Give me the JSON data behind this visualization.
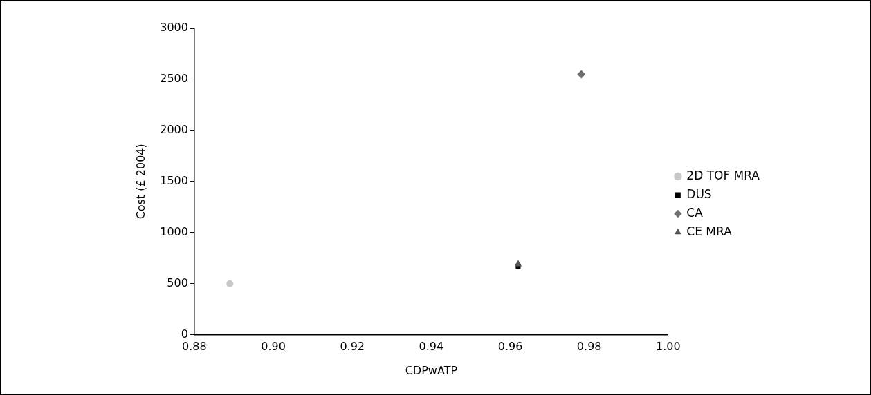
{
  "chart_data": {
    "type": "scatter",
    "xlabel": "CDPwATP",
    "ylabel": "Cost (£ 2004)",
    "xlim": [
      0.88,
      1.0
    ],
    "xticks": [
      {
        "value": 0.88,
        "label": "0.88"
      },
      {
        "value": 0.9,
        "label": "0.90"
      },
      {
        "value": 0.92,
        "label": "0.92"
      },
      {
        "value": 0.94,
        "label": "0.94"
      },
      {
        "value": 0.96,
        "label": "0.96"
      },
      {
        "value": 0.98,
        "label": "0.98"
      },
      {
        "value": 1.0,
        "label": "1.00"
      }
    ],
    "ylim": [
      0,
      3000
    ],
    "yticks": [
      0,
      500,
      1000,
      1500,
      2000,
      2500,
      3000
    ],
    "grid": false,
    "legend": "right",
    "series": [
      {
        "name": "2D TOF MRA",
        "color": "#c8c8c8",
        "marker": "circle",
        "x": [
          0.889
        ],
        "values": [
          500
        ]
      },
      {
        "name": "DUS",
        "color": "#000000",
        "marker": "square",
        "x": [
          0.962
        ],
        "values": [
          670
        ]
      },
      {
        "name": "CA",
        "color": "#6e6e6e",
        "marker": "diamond",
        "x": [
          0.978
        ],
        "values": [
          2550
        ]
      },
      {
        "name": "CE MRA",
        "color": "#555555",
        "marker": "triangle",
        "x": [
          0.962
        ],
        "values": [
          690
        ]
      }
    ]
  }
}
